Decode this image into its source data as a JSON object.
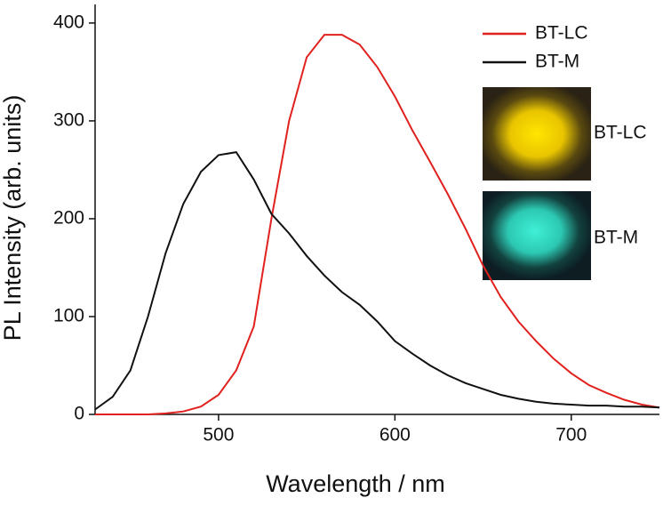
{
  "chart_data": {
    "type": "line",
    "xlabel": "Wavelength / nm",
    "ylabel": "PL Intensity (arb. units)",
    "x": [
      430,
      440,
      450,
      460,
      470,
      480,
      490,
      500,
      510,
      520,
      530,
      540,
      550,
      560,
      570,
      580,
      590,
      600,
      610,
      620,
      630,
      640,
      650,
      660,
      670,
      680,
      690,
      700,
      710,
      720,
      730,
      740,
      750
    ],
    "series": [
      {
        "name": "BT-LC",
        "color": "#e0211e",
        "values": [
          0,
          0,
          0,
          0,
          1,
          3,
          8,
          20,
          45,
          90,
          200,
          300,
          365,
          388,
          388,
          378,
          355,
          325,
          290,
          258,
          225,
          190,
          152,
          120,
          95,
          75,
          57,
          42,
          30,
          22,
          15,
          10,
          7
        ]
      },
      {
        "name": "BT-M",
        "color": "#111111",
        "values": [
          5,
          18,
          45,
          100,
          165,
          215,
          248,
          265,
          268,
          240,
          205,
          185,
          162,
          142,
          125,
          112,
          95,
          75,
          62,
          50,
          40,
          32,
          26,
          20,
          16,
          13,
          11,
          10,
          9,
          9,
          8,
          8,
          7
        ]
      }
    ],
    "xlim": [
      430,
      750
    ],
    "xticks": [
      500,
      600,
      700
    ],
    "ylim": [
      0,
      419
    ],
    "yticks": [
      0,
      100,
      200,
      300,
      400
    ],
    "legend": "top-right",
    "annotations": [
      "BT-LC",
      "BT-M"
    ]
  }
}
